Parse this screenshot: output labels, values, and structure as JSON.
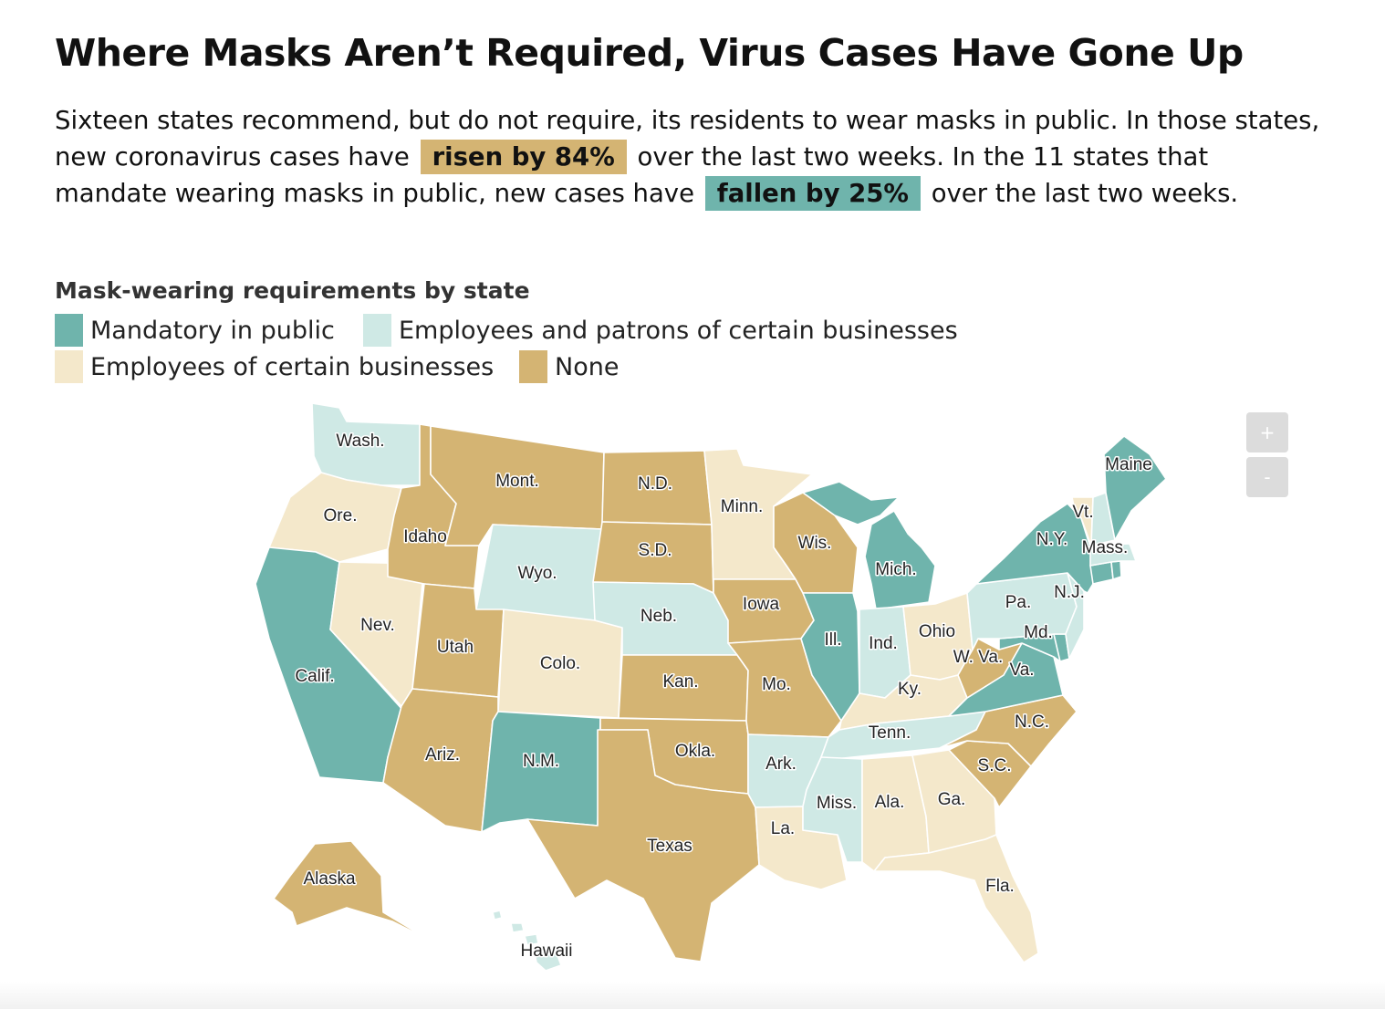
{
  "title": "Where Masks Aren’t Required, Virus Cases Have Gone Up",
  "intro": {
    "part1": "Sixteen states recommend, but do not require, its residents to wear masks in public. In those states, new coronavirus cases have",
    "highlight_up": "risen by 84%",
    "part2": "over the last two weeks. In the 11 states that mandate wearing masks in public, new cases have",
    "highlight_down": "fallen by 25%",
    "part3": "over the last two weeks."
  },
  "legend": {
    "title": "Mask-wearing requirements by state",
    "items": [
      {
        "key": "mandatory",
        "label": "Mandatory in public",
        "color": "#6fb4ac"
      },
      {
        "key": "patrons",
        "label": "Employees and patrons of certain businesses",
        "color": "#cfe9e5"
      },
      {
        "key": "employees",
        "label": "Employees of certain businesses",
        "color": "#f4e8cb"
      },
      {
        "key": "none",
        "label": "None",
        "color": "#d4b473"
      }
    ]
  },
  "zoom": {
    "in": "+",
    "out": "-"
  },
  "states": [
    {
      "abbr": "WA",
      "label": "Wash.",
      "category": "patrons"
    },
    {
      "abbr": "OR",
      "label": "Ore.",
      "category": "employees"
    },
    {
      "abbr": "CA",
      "label": "Calif.",
      "category": "mandatory"
    },
    {
      "abbr": "NV",
      "label": "Nev.",
      "category": "employees"
    },
    {
      "abbr": "ID",
      "label": "Idaho",
      "category": "none"
    },
    {
      "abbr": "MT",
      "label": "Mont.",
      "category": "none"
    },
    {
      "abbr": "WY",
      "label": "Wyo.",
      "category": "patrons"
    },
    {
      "abbr": "UT",
      "label": "Utah",
      "category": "none"
    },
    {
      "abbr": "CO",
      "label": "Colo.",
      "category": "employees"
    },
    {
      "abbr": "AZ",
      "label": "Ariz.",
      "category": "none"
    },
    {
      "abbr": "NM",
      "label": "N.M.",
      "category": "mandatory"
    },
    {
      "abbr": "ND",
      "label": "N.D.",
      "category": "none"
    },
    {
      "abbr": "SD",
      "label": "S.D.",
      "category": "none"
    },
    {
      "abbr": "NE",
      "label": "Neb.",
      "category": "patrons"
    },
    {
      "abbr": "KS",
      "label": "Kan.",
      "category": "none"
    },
    {
      "abbr": "OK",
      "label": "Okla.",
      "category": "none"
    },
    {
      "abbr": "TX",
      "label": "Texas",
      "category": "none"
    },
    {
      "abbr": "MN",
      "label": "Minn.",
      "category": "employees"
    },
    {
      "abbr": "IA",
      "label": "Iowa",
      "category": "none"
    },
    {
      "abbr": "MO",
      "label": "Mo.",
      "category": "none"
    },
    {
      "abbr": "AR",
      "label": "Ark.",
      "category": "patrons"
    },
    {
      "abbr": "LA",
      "label": "La.",
      "category": "employees"
    },
    {
      "abbr": "WI",
      "label": "Wis.",
      "category": "none"
    },
    {
      "abbr": "IL",
      "label": "Ill.",
      "category": "mandatory"
    },
    {
      "abbr": "MI",
      "label": "Mich.",
      "category": "mandatory"
    },
    {
      "abbr": "IN",
      "label": "Ind.",
      "category": "patrons"
    },
    {
      "abbr": "OH",
      "label": "Ohio",
      "category": "employees"
    },
    {
      "abbr": "KY",
      "label": "Ky.",
      "category": "employees"
    },
    {
      "abbr": "TN",
      "label": "Tenn.",
      "category": "patrons"
    },
    {
      "abbr": "MS",
      "label": "Miss.",
      "category": "patrons"
    },
    {
      "abbr": "AL",
      "label": "Ala.",
      "category": "employees"
    },
    {
      "abbr": "GA",
      "label": "Ga.",
      "category": "employees"
    },
    {
      "abbr": "FL",
      "label": "Fla.",
      "category": "employees"
    },
    {
      "abbr": "SC",
      "label": "S.C.",
      "category": "none"
    },
    {
      "abbr": "NC",
      "label": "N.C.",
      "category": "none"
    },
    {
      "abbr": "VA",
      "label": "Va.",
      "category": "mandatory"
    },
    {
      "abbr": "WV",
      "label": "W. Va.",
      "category": "none"
    },
    {
      "abbr": "MD",
      "label": "Md.",
      "category": "mandatory"
    },
    {
      "abbr": "DE",
      "label": "",
      "category": "mandatory"
    },
    {
      "abbr": "PA",
      "label": "Pa.",
      "category": "patrons"
    },
    {
      "abbr": "NJ",
      "label": "N.J.",
      "category": "patrons"
    },
    {
      "abbr": "NY",
      "label": "N.Y.",
      "category": "mandatory"
    },
    {
      "abbr": "CT",
      "label": "",
      "category": "mandatory"
    },
    {
      "abbr": "RI",
      "label": "",
      "category": "mandatory"
    },
    {
      "abbr": "MA",
      "label": "Mass.",
      "category": "patrons"
    },
    {
      "abbr": "VT",
      "label": "Vt.",
      "category": "employees"
    },
    {
      "abbr": "NH",
      "label": "",
      "category": "patrons"
    },
    {
      "abbr": "ME",
      "label": "Maine",
      "category": "mandatory"
    },
    {
      "abbr": "AK",
      "label": "Alaska",
      "category": "none"
    },
    {
      "abbr": "HI",
      "label": "Hawaii",
      "category": "patrons"
    }
  ]
}
